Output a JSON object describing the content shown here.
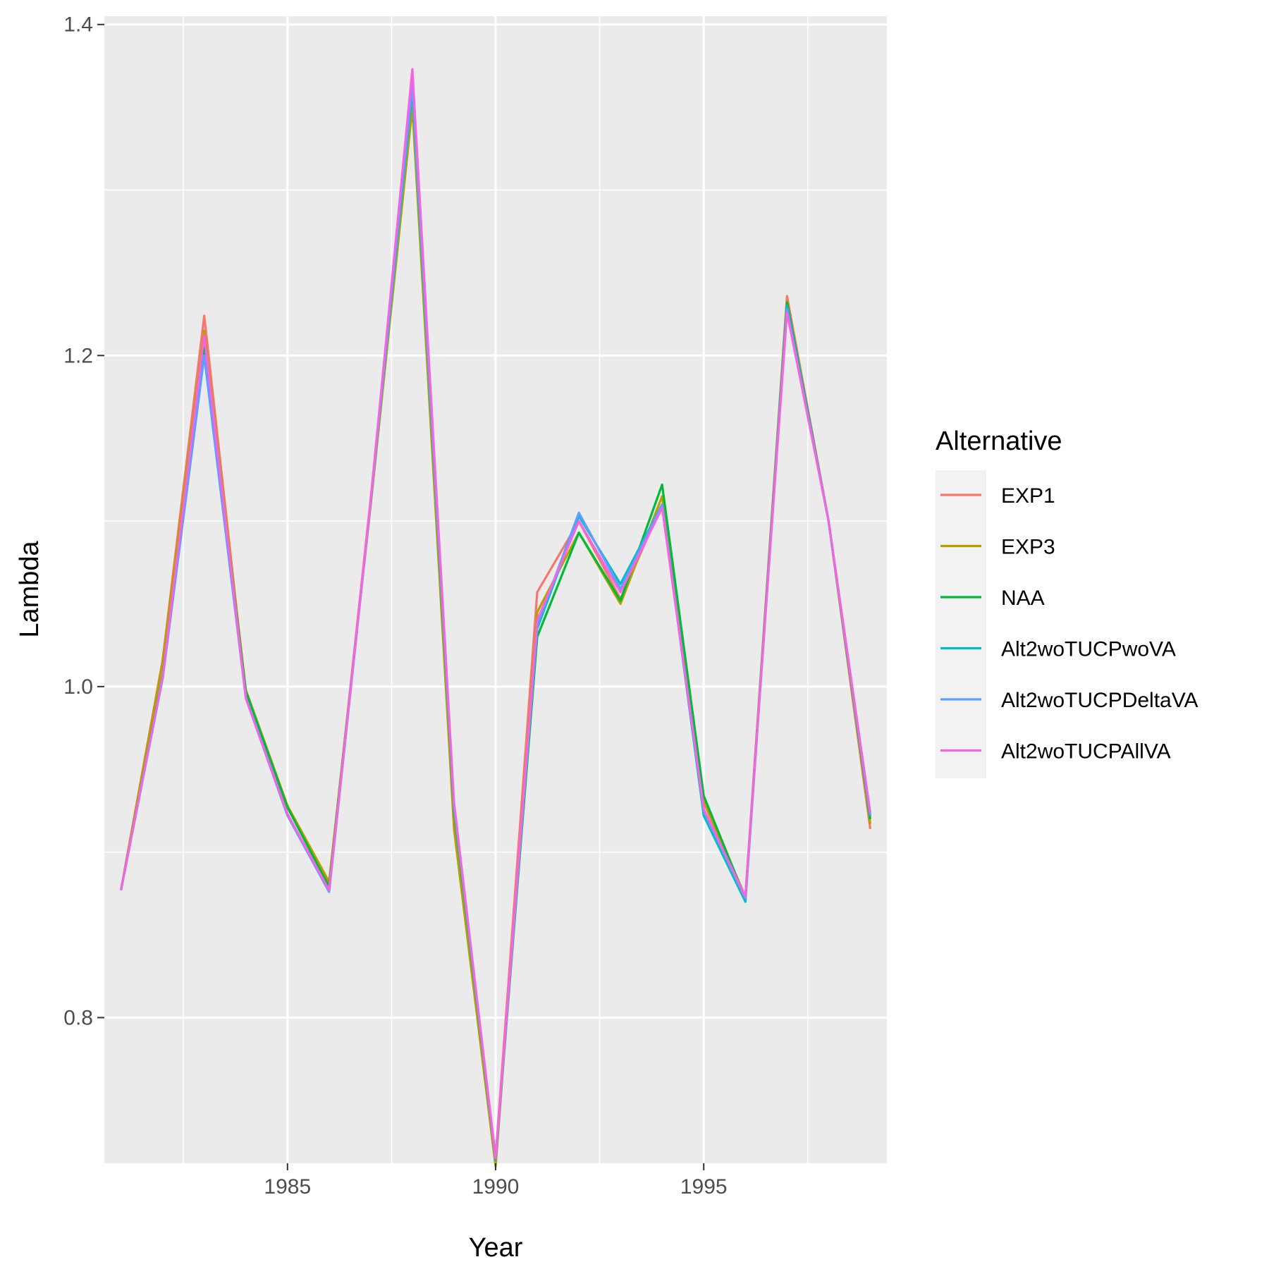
{
  "chart_data": {
    "type": "line",
    "title": "",
    "xlabel": "Year",
    "ylabel": "Lambda",
    "xlim": [
      1980.6,
      1999.4
    ],
    "ylim": [
      0.712,
      1.405
    ],
    "x_ticks": [
      1985,
      1990,
      1995
    ],
    "y_ticks": [
      0.8,
      1.0,
      1.2,
      1.4
    ],
    "grid": true,
    "legend_title": "Alternative",
    "legend_position": "right",
    "x": [
      1981,
      1982,
      1983,
      1984,
      1985,
      1986,
      1987,
      1988,
      1989,
      1990,
      1991,
      1992,
      1993,
      1994,
      1995,
      1996,
      1997,
      1998,
      1999
    ],
    "series": [
      {
        "name": "EXP1",
        "color": "#F8766D",
        "values": [
          0.877,
          1.016,
          1.224,
          0.996,
          0.927,
          0.88,
          1.114,
          1.366,
          0.92,
          0.716,
          1.057,
          1.1,
          1.053,
          1.11,
          0.93,
          0.873,
          1.236,
          1.1,
          0.914
        ]
      },
      {
        "name": "EXP3",
        "color": "#B79F00",
        "values": [
          0.877,
          1.015,
          1.215,
          0.998,
          0.928,
          0.882,
          1.11,
          1.35,
          0.914,
          0.71,
          1.045,
          1.093,
          1.05,
          1.115,
          0.931,
          0.873,
          1.233,
          1.1,
          0.917
        ]
      },
      {
        "name": "NAA",
        "color": "#00BA38",
        "values": [
          0.877,
          1.007,
          1.205,
          0.997,
          0.927,
          0.879,
          1.112,
          1.362,
          0.925,
          0.714,
          1.03,
          1.093,
          1.052,
          1.122,
          0.934,
          0.872,
          1.232,
          1.1,
          0.92
        ]
      },
      {
        "name": "Alt2woTUCPwoVA",
        "color": "#00BFC4",
        "values": [
          0.877,
          1.005,
          1.2,
          0.994,
          0.923,
          0.876,
          1.112,
          1.36,
          0.927,
          0.714,
          1.035,
          1.103,
          1.062,
          1.11,
          0.922,
          0.87,
          1.23,
          1.1,
          0.922
        ]
      },
      {
        "name": "Alt2woTUCPDeltaVA",
        "color": "#619CFF",
        "values": [
          0.877,
          1.005,
          1.2,
          0.993,
          0.922,
          0.876,
          1.112,
          1.364,
          0.928,
          0.715,
          1.037,
          1.105,
          1.059,
          1.11,
          0.925,
          0.872,
          1.228,
          1.1,
          0.922
        ]
      },
      {
        "name": "Alt2woTUCPAllVA",
        "color": "#F564E3",
        "values": [
          0.877,
          1.006,
          1.212,
          0.993,
          0.923,
          0.877,
          1.113,
          1.373,
          0.93,
          0.715,
          1.04,
          1.1,
          1.057,
          1.108,
          0.926,
          0.873,
          1.226,
          1.1,
          0.924
        ]
      }
    ]
  }
}
